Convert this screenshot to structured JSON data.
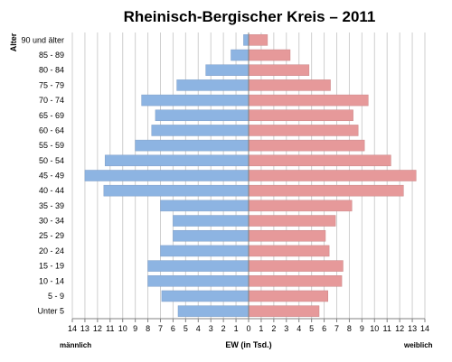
{
  "chart_data": {
    "type": "bar",
    "orientation": "horizontal",
    "title": "Rheinisch-Bergischer Kreis – 2011",
    "ylabel": "Alter",
    "xlabel": "EW (in Tsd.)",
    "left_side_label": "männlich",
    "right_side_label": "weiblich",
    "xlim": [
      -14,
      14
    ],
    "x_ticks": [
      "14",
      "13",
      "12",
      "11",
      "10",
      "9",
      "8",
      "7",
      "6",
      "5",
      "4",
      "3",
      "2",
      "1",
      "0",
      "1",
      "2",
      "3",
      "4",
      "5",
      "6",
      "7",
      "8",
      "9",
      "10",
      "11",
      "12",
      "13",
      "14"
    ],
    "grid": true,
    "categories": [
      "90 und älter",
      "85 - 89",
      "80 - 84",
      "75 - 79",
      "70 - 74",
      "65 - 69",
      "60 - 64",
      "55 - 59",
      "50 - 54",
      "45 - 49",
      "40 - 44",
      "35 - 39",
      "30 - 34",
      "25 - 29",
      "20 - 24",
      "15 - 19",
      "10 - 14",
      "5 - 9",
      "Unter 5"
    ],
    "series": [
      {
        "name": "männlich",
        "color": "#8db4e2",
        "values": [
          0.4,
          1.4,
          3.4,
          5.7,
          8.5,
          7.4,
          7.7,
          9.0,
          11.4,
          13.0,
          11.5,
          7.0,
          6.0,
          6.0,
          7.0,
          8.0,
          8.0,
          6.9,
          5.6
        ]
      },
      {
        "name": "weiblich",
        "color": "#e6999a",
        "values": [
          1.5,
          3.3,
          4.8,
          6.5,
          9.5,
          8.3,
          8.7,
          9.2,
          11.3,
          13.3,
          12.3,
          8.2,
          6.9,
          6.1,
          6.4,
          7.5,
          7.4,
          6.3,
          5.6
        ]
      }
    ]
  }
}
